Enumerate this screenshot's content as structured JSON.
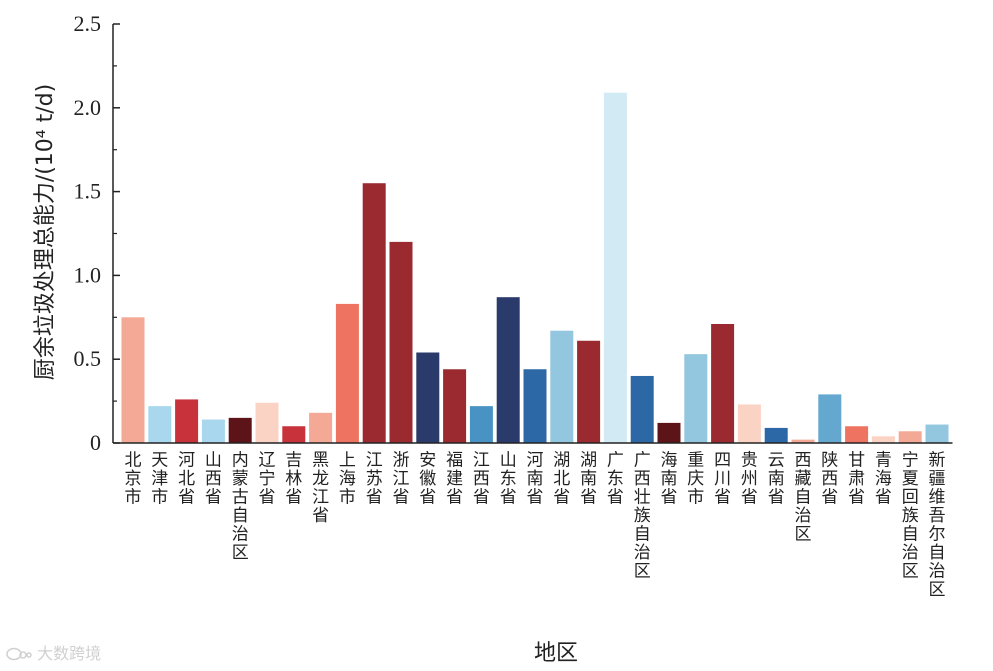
{
  "chart_data": {
    "type": "bar",
    "xlabel": "地区",
    "ylabel": "厨余垃圾处理总能力/(10⁴ t/d)",
    "ylim": [
      0,
      2.5
    ],
    "yticks": [
      "0",
      "0.5",
      "1.0",
      "1.5",
      "2.0",
      "2.5"
    ],
    "grid": false,
    "categories": [
      "北京市",
      "天津市",
      "河北省",
      "山西省",
      "内蒙古自治区",
      "辽宁省",
      "吉林省",
      "黑龙江省",
      "上海市",
      "江苏省",
      "浙江省",
      "安徽省",
      "福建省",
      "江西省",
      "山东省",
      "河南省",
      "湖北省",
      "湖南省",
      "广东省",
      "广西壮族自治区",
      "海南省",
      "重庆市",
      "四川省",
      "贵州省",
      "云南省",
      "西藏自治区",
      "陕西省",
      "甘肃省",
      "青海省",
      "宁夏回族自治区",
      "新疆维吾尔自治区"
    ],
    "values": [
      0.75,
      0.22,
      0.26,
      0.14,
      0.15,
      0.24,
      0.1,
      0.18,
      0.83,
      1.55,
      1.2,
      0.54,
      0.44,
      0.22,
      0.87,
      0.44,
      0.67,
      0.61,
      2.09,
      0.4,
      0.12,
      0.53,
      0.71,
      0.23,
      0.09,
      0.02,
      0.29,
      0.1,
      0.04,
      0.07,
      0.11
    ],
    "colors": [
      "#f4a996",
      "#a9d8ee",
      "#c7323b",
      "#a9d8ee",
      "#5c1419",
      "#fbd3c4",
      "#c7323b",
      "#f4a996",
      "#ee7361",
      "#9a2a30",
      "#9a2a30",
      "#2a3a6a",
      "#9a2a30",
      "#4893c4",
      "#2a3a6a",
      "#2c67a6",
      "#93c6df",
      "#9a2a30",
      "#d2eaf3",
      "#2c67a6",
      "#5c1419",
      "#93c6df",
      "#9a2a30",
      "#fbd3c4",
      "#2c67a6",
      "#f4a996",
      "#64a8d0",
      "#ee7361",
      "#fbd3c4",
      "#f4a996",
      "#93c6df"
    ]
  },
  "watermark": {
    "text": "大数跨境",
    "icon": "speech-bubble-logo-icon"
  }
}
